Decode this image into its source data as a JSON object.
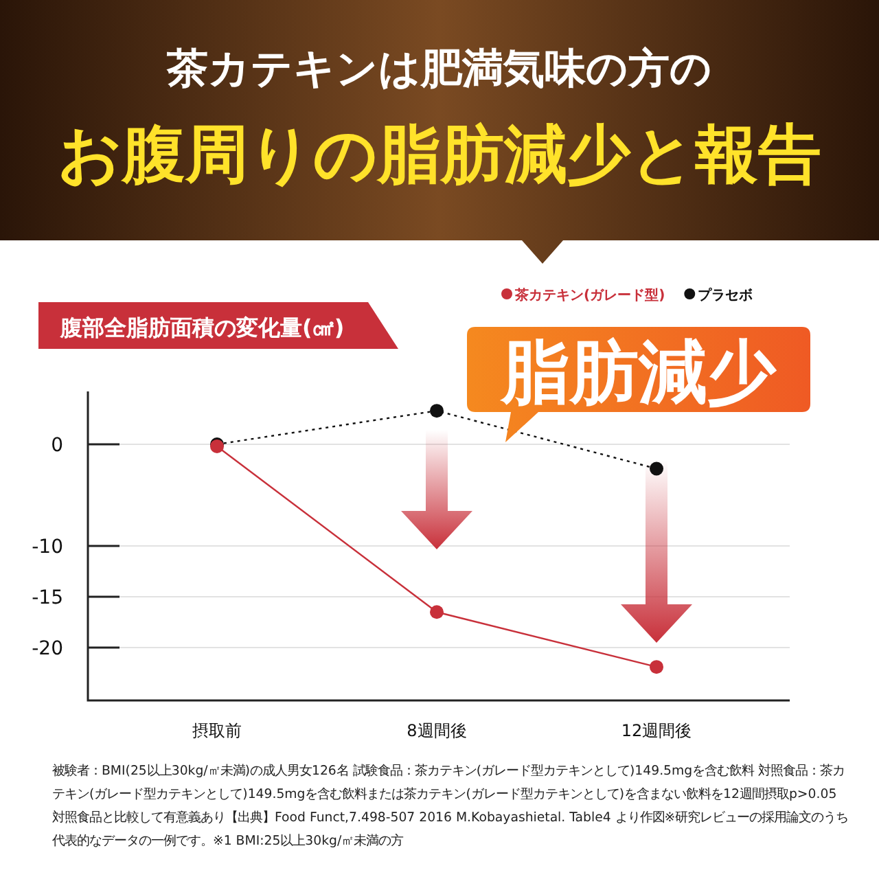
{
  "chart_data": {
    "type": "line",
    "title": "茶カテキンは肥満気味の方の",
    "subtitle": "お腹周りの脂肪減少と報告",
    "ylabel": "腹部全脂肪面積の変化量(㎠)",
    "categories": [
      "摂取前",
      "8週間後",
      "12週間後"
    ],
    "series": [
      {
        "name": "茶カテキン(ガレード型)",
        "color": "#c8303a",
        "values": [
          -0.2,
          -16.5,
          -21.9
        ],
        "line_style": "solid"
      },
      {
        "name": "プラセボ",
        "color": "#111111",
        "values": [
          0,
          3.3,
          -2.4
        ],
        "line_style": "dotted"
      }
    ],
    "ylim": [
      -25.2,
      5.2
    ],
    "yticks": [
      0,
      -10,
      -15,
      -20
    ],
    "grid": "y",
    "legend": "top right",
    "marker": "circle",
    "annotations": [
      "脂肪減少",
      "被験者：BMI(25以上30kg/㎡未満)の成人男女126名 試験食品：茶カテキン(ガレード型カテキンとして)149.5mgを含む飲料 対照食品：茶カテキン(ガレード型カテキンとして)149.5mgを含む飲料または茶カテキン(ガレード型カテキンとして)を含まない飲料を12週間摂取p>0.05対照食品と比較して有意義あり【出典】Food Funct,7.498-507 2016 M.Kobayashietal. Table4 より作図※研究レビューの採用論文のうち代表的なデータの一例です。※1 BMI:25以上30kg/㎡未満の方"
    ]
  }
}
